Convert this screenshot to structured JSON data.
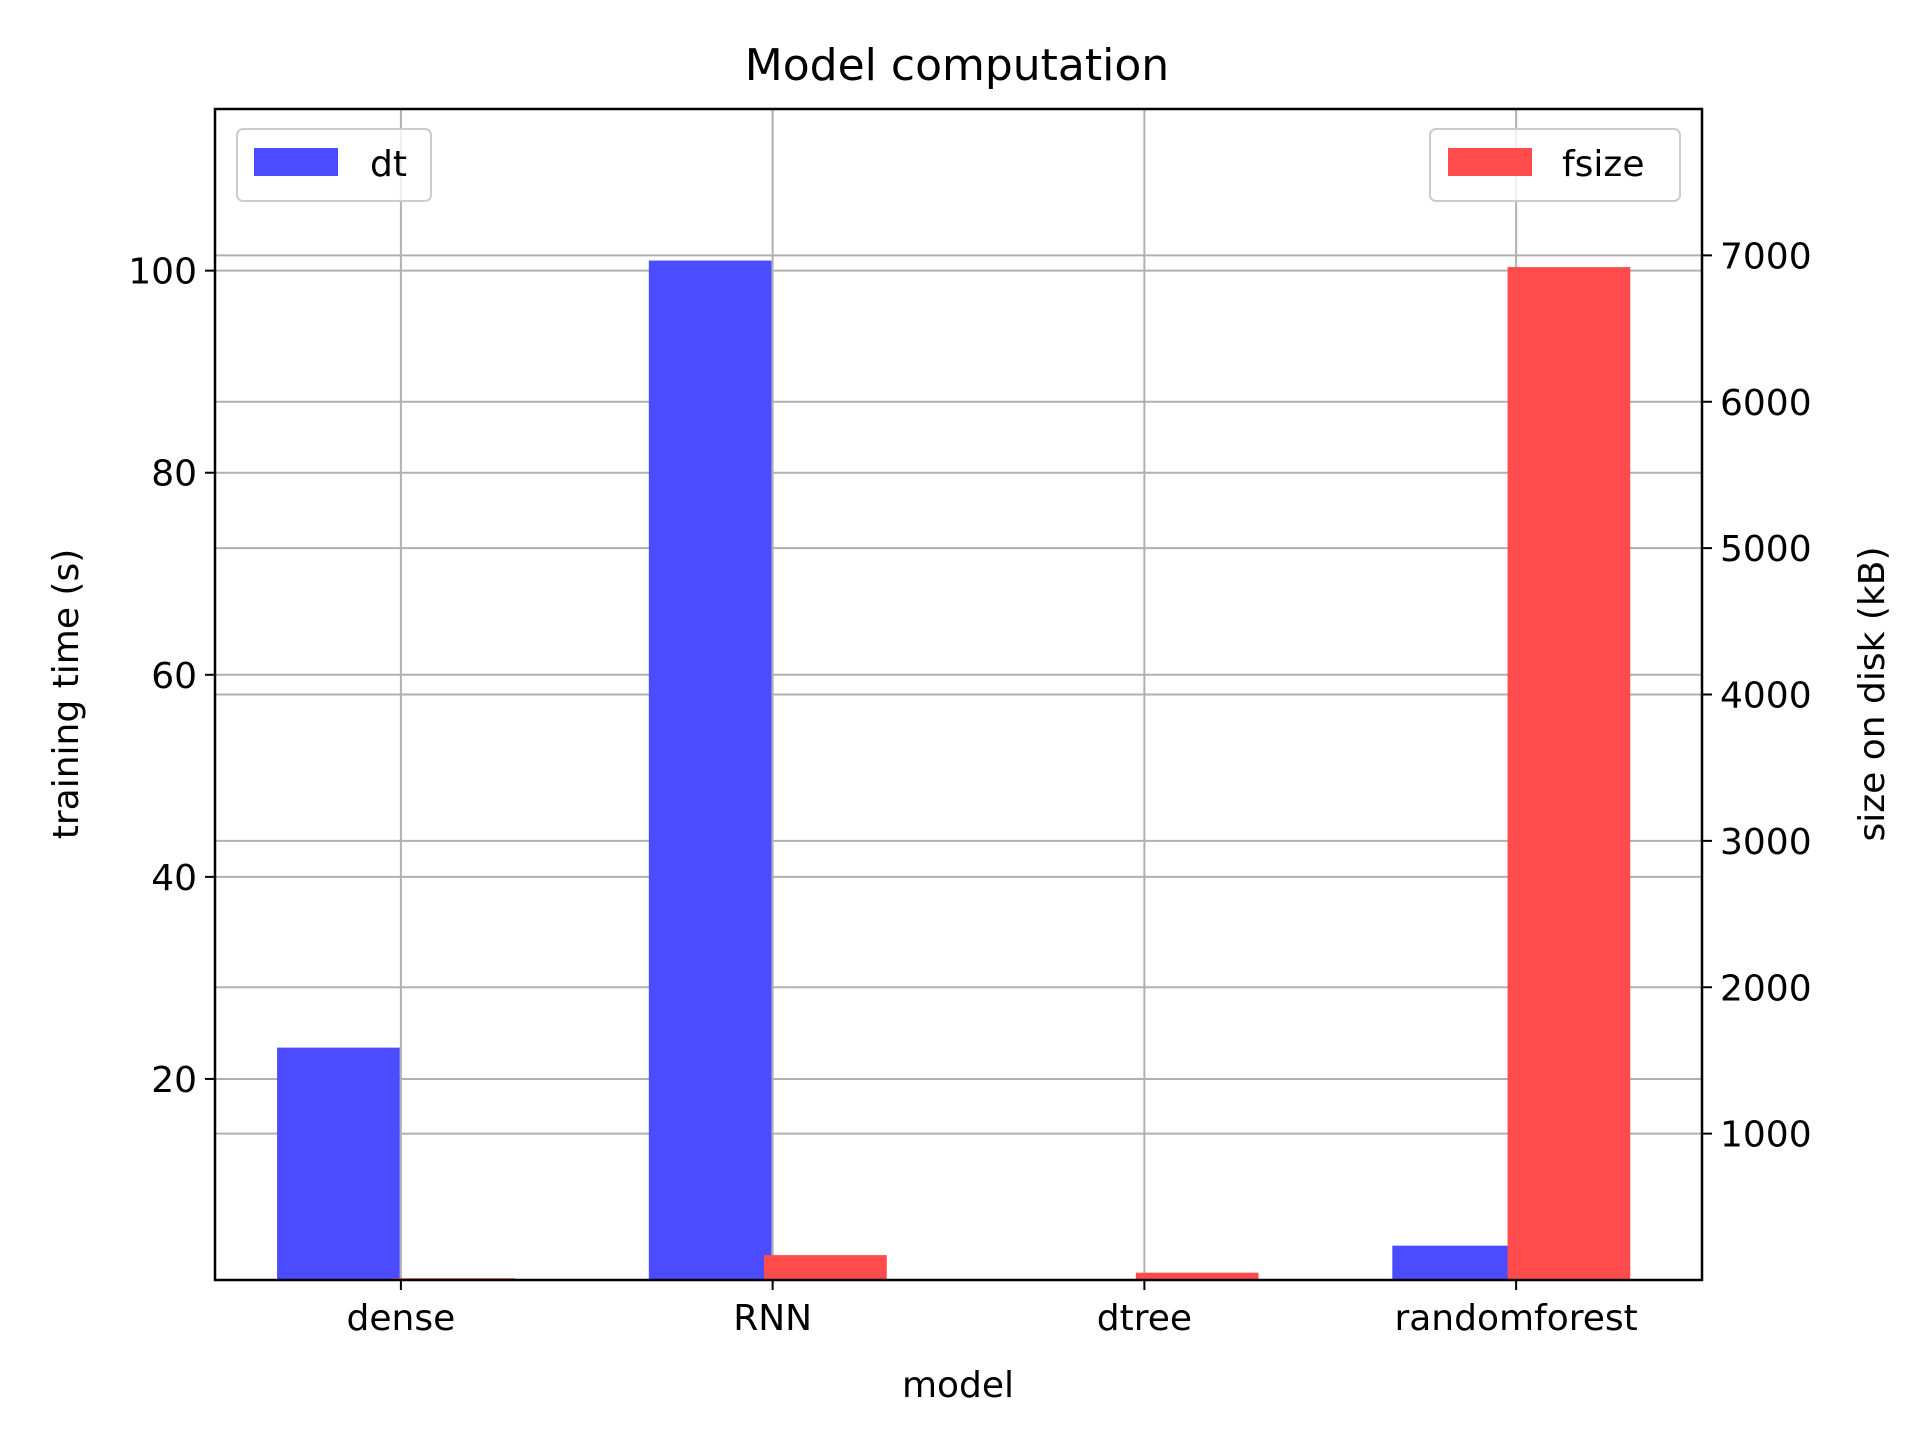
{
  "chart_data": {
    "type": "bar",
    "title": "Model computation",
    "xlabel": "model",
    "ylabel": "training time (s)",
    "ylabel_right": "size on disk (kB)",
    "categories": [
      "dense",
      "RNN",
      "dtree",
      "randomforest"
    ],
    "series": [
      {
        "name": "dt",
        "axis": "left",
        "color": "#4b4bff",
        "values": [
          23.1,
          101.0,
          0.03,
          3.5
        ]
      },
      {
        "name": "fsize",
        "axis": "right",
        "color": "#ff4b4b",
        "values": [
          12,
          170,
          50,
          6920
        ]
      }
    ],
    "ylim": [
      0.1,
      116
    ],
    "ylim_right": [
      0,
      8000
    ],
    "yticks": [
      20,
      40,
      60,
      80,
      100
    ],
    "yticks_right": [
      1000,
      2000,
      3000,
      4000,
      5000,
      6000,
      7000
    ],
    "ytick_labels": [
      "20",
      "40",
      "60",
      "80",
      "100"
    ],
    "ytick_labels_right": [
      "1000",
      "2000",
      "3000",
      "4000",
      "5000",
      "6000",
      "7000"
    ],
    "grid": true,
    "legend_left_placement": "upper-left",
    "legend_right_placement": "upper-right"
  }
}
